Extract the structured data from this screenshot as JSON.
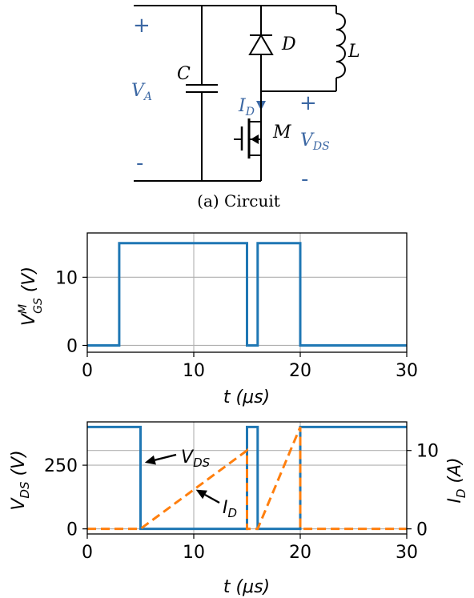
{
  "circuit": {
    "caption": "(a) Circuit",
    "va_plus": "+",
    "va_minus": "-",
    "va_label_main": "V",
    "va_label_sub": "A",
    "c_label": "C",
    "d_label": "D",
    "l_label": "L",
    "m_label": "M",
    "id_label_main": "I",
    "id_label_sub": "D",
    "vds_plus": "+",
    "vds_minus": "-",
    "vds_label_main": "V",
    "vds_label_sub": "DS"
  },
  "chart_data": [
    {
      "type": "line",
      "xlabel_main": "t",
      "xlabel_unit": "(μs)",
      "ylabel_main": "V",
      "ylabel_sup": "M",
      "ylabel_sub": "GS",
      "ylabel_unit": "(V)",
      "xlim": [
        0,
        30
      ],
      "ylim": [
        -1,
        16.5
      ],
      "xticks": [
        0,
        10,
        20,
        30
      ],
      "yticks": [
        0,
        10
      ],
      "grid": true,
      "series": [
        {
          "x": [
            0,
            3,
            3,
            15,
            15,
            16,
            16,
            20,
            20,
            30
          ],
          "y": [
            0,
            0,
            15,
            15,
            0,
            0,
            15,
            15,
            0,
            0
          ],
          "color": "#1f77b4"
        }
      ]
    },
    {
      "type": "line",
      "xlabel_main": "t",
      "xlabel_unit": "(μs)",
      "ylabel_main": "V",
      "ylabel_sub": "DS",
      "ylabel_unit": "(V)",
      "ylabel2_main": "I",
      "ylabel2_sub": "D",
      "ylabel2_unit": "(A)",
      "xlim": [
        0,
        30
      ],
      "ylim": [
        -20,
        420
      ],
      "ylim2": [
        -0.65,
        13.65
      ],
      "xticks": [
        0,
        10,
        20,
        30
      ],
      "yticks": [
        0,
        250
      ],
      "yticks2": [
        0,
        10
      ],
      "grid": true,
      "series": [
        {
          "axis": "left",
          "x": [
            0,
            5,
            5,
            15,
            15,
            16,
            16,
            20,
            20,
            30
          ],
          "y": [
            400,
            400,
            0,
            0,
            400,
            400,
            0,
            0,
            400,
            400
          ],
          "color": "#1f77b4"
        },
        {
          "axis": "right",
          "x": [
            0,
            5,
            15,
            15,
            16,
            20,
            20,
            30
          ],
          "y": [
            0,
            0,
            10,
            0,
            0,
            13,
            0,
            0
          ],
          "color": "#ff7f0e"
        }
      ],
      "annotations": [
        {
          "text_main": "V",
          "text_sub": "DS",
          "arrow_to": [
            5.4,
            260
          ]
        },
        {
          "text_main": "I",
          "text_sub": "D",
          "arrow_to": [
            10.2,
            5
          ]
        }
      ]
    }
  ]
}
